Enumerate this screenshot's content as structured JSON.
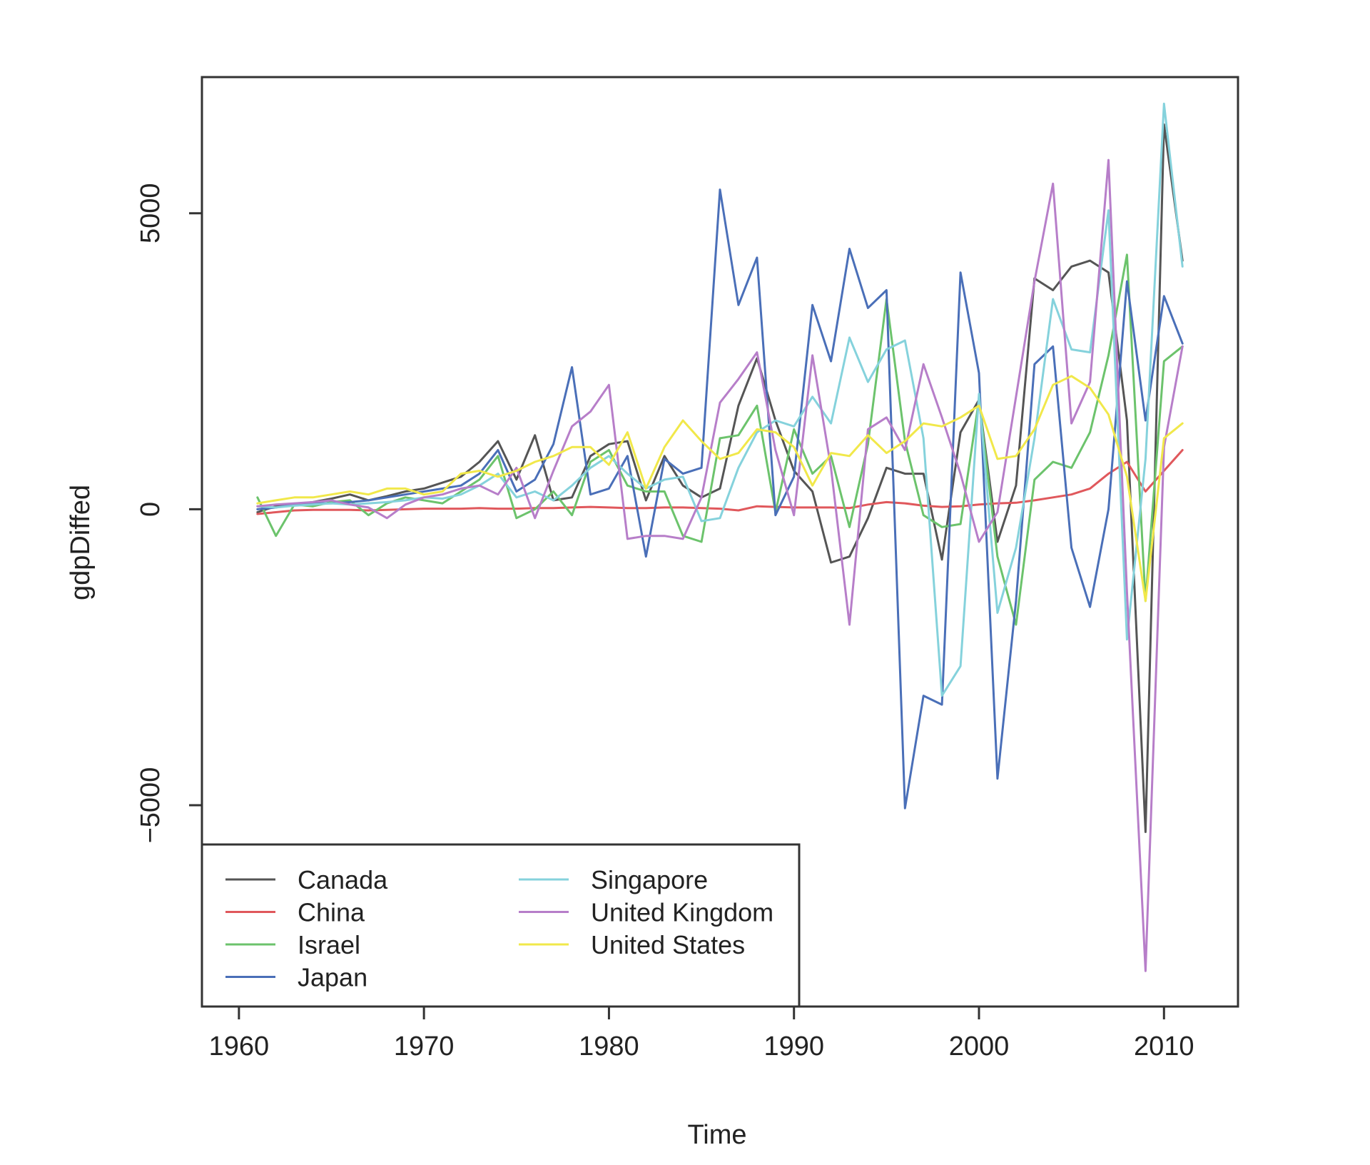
{
  "chart_data": {
    "type": "line",
    "xlabel": "Time",
    "ylabel": "gdpDiffed",
    "xlim": [
      1958,
      2014
    ],
    "ylim": [
      -8400,
      7300
    ],
    "x_ticks": [
      1960,
      1970,
      1980,
      1990,
      2000,
      2010
    ],
    "y_ticks": [
      -5000,
      0,
      5000
    ],
    "grid": false,
    "legend": {
      "position": "bottom-left",
      "columns": 2
    },
    "x": [
      1961,
      1962,
      1963,
      1964,
      1965,
      1966,
      1967,
      1968,
      1969,
      1970,
      1971,
      1972,
      1973,
      1974,
      1975,
      1976,
      1977,
      1978,
      1979,
      1980,
      1981,
      1982,
      1983,
      1984,
      1985,
      1986,
      1987,
      1988,
      1989,
      1990,
      1991,
      1992,
      1993,
      1994,
      1995,
      1996,
      1997,
      1998,
      1999,
      2000,
      2001,
      2002,
      2003,
      2004,
      2005,
      2006,
      2007,
      2008,
      2009,
      2010,
      2011
    ],
    "series": [
      {
        "name": "Canada",
        "color": "#555555",
        "values": [
          -50,
          50,
          80,
          120,
          180,
          250,
          150,
          220,
          300,
          350,
          450,
          550,
          800,
          1150,
          500,
          1250,
          150,
          200,
          900,
          1100,
          1150,
          150,
          900,
          400,
          200,
          350,
          1750,
          2550,
          1500,
          650,
          300,
          -900,
          -800,
          -150,
          700,
          600,
          600,
          -850,
          1300,
          1850,
          -550,
          400,
          3900,
          3700,
          4100,
          4200,
          4000,
          1500,
          -5450,
          6500,
          4200
        ]
      },
      {
        "name": "China",
        "color": "#e0585c",
        "values": [
          -80,
          -50,
          -20,
          -10,
          -10,
          -10,
          -20,
          -10,
          0,
          10,
          10,
          10,
          20,
          10,
          10,
          20,
          20,
          30,
          40,
          30,
          20,
          20,
          30,
          30,
          20,
          10,
          -20,
          50,
          40,
          30,
          30,
          30,
          20,
          80,
          120,
          100,
          60,
          40,
          50,
          80,
          100,
          110,
          150,
          200,
          250,
          350,
          600,
          800,
          300,
          650,
          1000
        ]
      },
      {
        "name": "Israel",
        "color": "#6cc36c",
        "values": [
          200,
          -450,
          80,
          50,
          120,
          150,
          -100,
          100,
          200,
          150,
          100,
          300,
          500,
          900,
          -150,
          0,
          300,
          -100,
          800,
          1000,
          400,
          300,
          300,
          -450,
          -550,
          1200,
          1250,
          1750,
          -50,
          1350,
          600,
          900,
          -300,
          1100,
          3550,
          1150,
          -100,
          -300,
          -250,
          1850,
          -800,
          -1950,
          500,
          800,
          700,
          1300,
          2600,
          4300,
          -1550,
          2500,
          2750
        ]
      },
      {
        "name": "Japan",
        "color": "#4a6fb8",
        "values": [
          0,
          30,
          80,
          100,
          100,
          120,
          150,
          200,
          250,
          300,
          350,
          400,
          600,
          1000,
          300,
          500,
          1100,
          2400,
          250,
          350,
          900,
          -800,
          850,
          600,
          700,
          5400,
          3450,
          4250,
          -100,
          550,
          3450,
          2500,
          4400,
          3400,
          3700,
          -5050,
          -3150,
          -3300,
          4000,
          2300,
          -4550,
          -1550,
          2450,
          2750,
          -650,
          -1650,
          0,
          3850,
          1500,
          3600,
          2800
        ]
      },
      {
        "name": "Singapore",
        "color": "#85d2dc",
        "values": [
          50,
          30,
          60,
          80,
          100,
          80,
          100,
          120,
          150,
          200,
          180,
          250,
          400,
          600,
          200,
          300,
          150,
          400,
          700,
          900,
          600,
          350,
          500,
          550,
          -200,
          -150,
          700,
          1300,
          1500,
          1400,
          1900,
          1450,
          2900,
          2150,
          2700,
          2850,
          1200,
          -3150,
          -2650,
          1950,
          -1750,
          -650,
          1200,
          3550,
          2700,
          2650,
          5050,
          -2200,
          850,
          6850,
          4100
        ]
      },
      {
        "name": "United Kingdom",
        "color": "#b77ec9",
        "values": [
          50,
          80,
          100,
          120,
          150,
          80,
          30,
          -150,
          80,
          200,
          250,
          350,
          400,
          250,
          700,
          -150,
          650,
          1400,
          1650,
          2100,
          -500,
          -450,
          -450,
          -500,
          200,
          1800,
          2200,
          2650,
          1000,
          -100,
          2600,
          700,
          -1950,
          1350,
          1550,
          1000,
          2450,
          1550,
          600,
          -550,
          -50,
          1900,
          3850,
          5500,
          1450,
          2150,
          5900,
          -1400,
          -7800,
          1050,
          2750
        ]
      },
      {
        "name": "United States",
        "color": "#f1e84a",
        "values": [
          100,
          150,
          200,
          200,
          250,
          300,
          250,
          350,
          350,
          250,
          300,
          600,
          650,
          550,
          650,
          800,
          900,
          1050,
          1050,
          750,
          1300,
          350,
          1050,
          1500,
          1150,
          850,
          950,
          1350,
          1300,
          1050,
          400,
          950,
          900,
          1250,
          950,
          1150,
          1450,
          1400,
          1550,
          1750,
          850,
          900,
          1350,
          2100,
          2250,
          2050,
          1600,
          550,
          -1550,
          1200,
          1450
        ]
      }
    ]
  }
}
